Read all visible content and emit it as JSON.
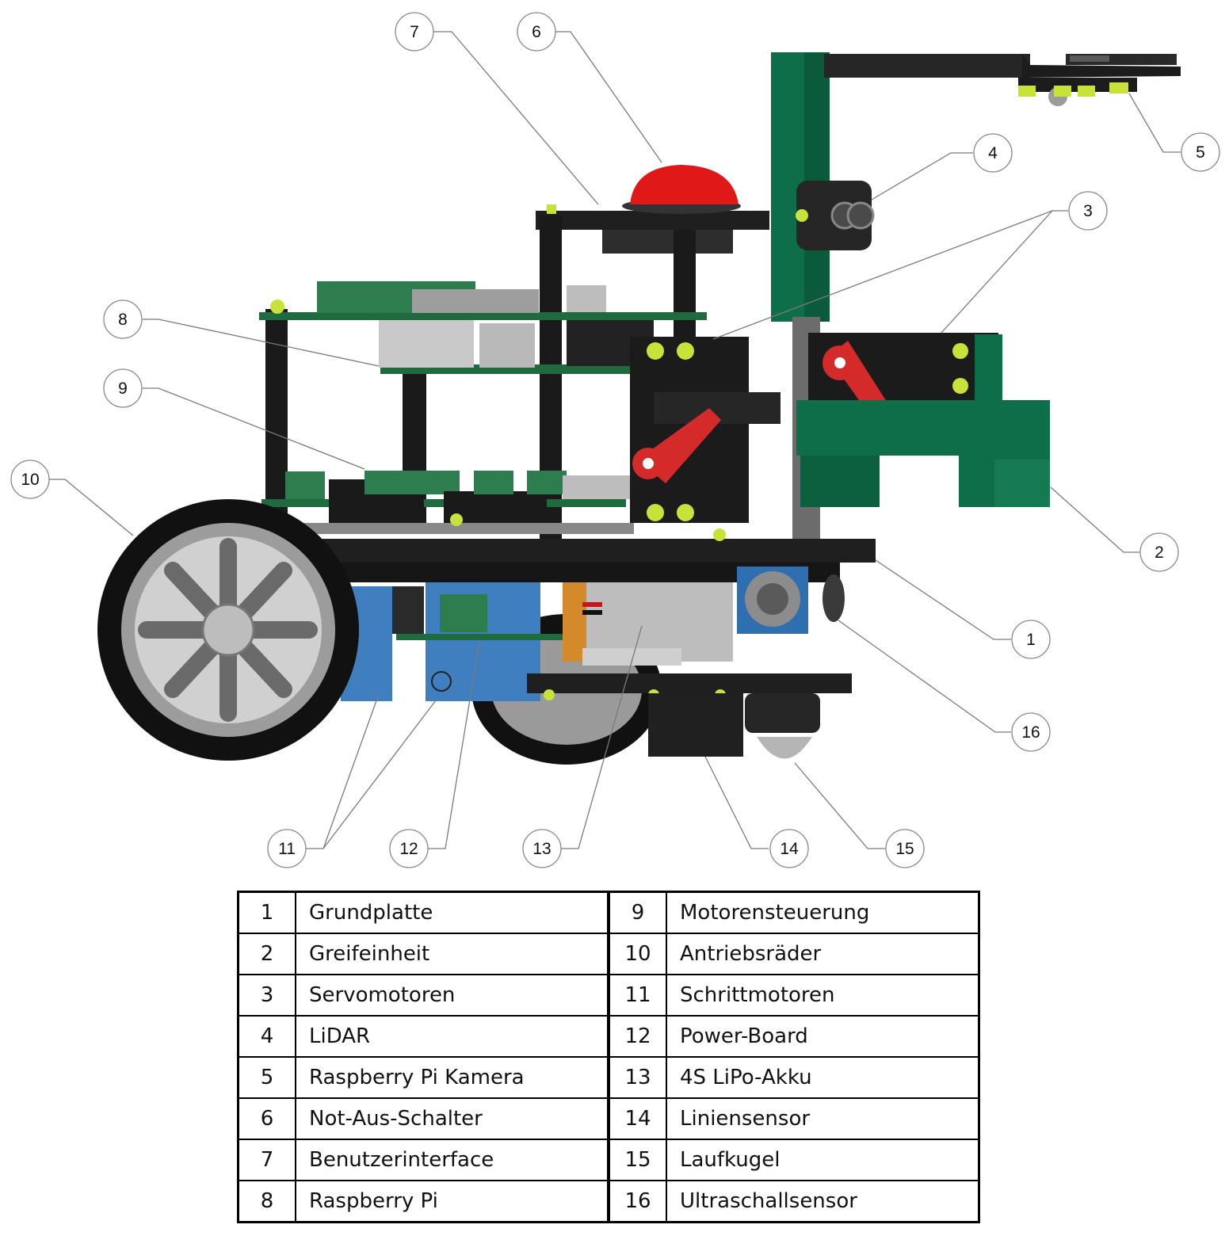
{
  "callouts": [
    "1",
    "2",
    "3",
    "4",
    "5",
    "6",
    "7",
    "8",
    "9",
    "10",
    "11",
    "12",
    "13",
    "14",
    "15",
    "16"
  ],
  "parts_table": [
    {
      "left_num": "1",
      "left_name": "Grundplatte",
      "right_num": "9",
      "right_name": "Motorensteuerung"
    },
    {
      "left_num": "2",
      "left_name": "Greifeinheit",
      "right_num": "10",
      "right_name": "Antriebsräder"
    },
    {
      "left_num": "3",
      "left_name": "Servomotoren",
      "right_num": "11",
      "right_name": "Schrittmotoren"
    },
    {
      "left_num": "4",
      "left_name": "LiDAR",
      "right_num": "12",
      "right_name": "Power-Board"
    },
    {
      "left_num": "5",
      "left_name": "Raspberry Pi Kamera",
      "right_num": "13",
      "right_name": "4S LiPo-Akku"
    },
    {
      "left_num": "6",
      "left_name": "Not-Aus-Schalter",
      "right_num": "14",
      "right_name": "Liniensensor"
    },
    {
      "left_num": "7",
      "left_name": "Benutzerinterface",
      "right_num": "15",
      "right_name": "Laufkugel"
    },
    {
      "left_num": "8",
      "left_name": "Raspberry Pi",
      "right_num": "16",
      "right_name": "Ultraschallsensor"
    }
  ],
  "colors": {
    "chassis": "#1f1f1f",
    "pcb_green": "#1f6b3f",
    "mount_green": "#0f6e4a",
    "motor_blue": "#3f7fbf",
    "servo_arm_red": "#d42a2a",
    "estop_red": "#e01818",
    "wheel_tire": "#111111",
    "wheel_rim": "#c8c8c8",
    "screw_yellow": "#c9e23a",
    "battery_grey": "#bdbdbd"
  }
}
